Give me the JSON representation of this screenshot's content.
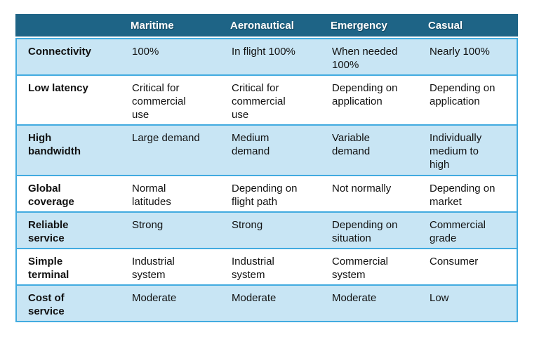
{
  "colors": {
    "header-bg": "#1E6486",
    "header-text": "#FFFFFF",
    "row-bg": "#FFFFFF",
    "row-alt-bg": "#C8E5F4",
    "border": "#42ABE0",
    "body-text": "#111111"
  },
  "table": {
    "columns": [
      "",
      "Maritime",
      "Aeronautical",
      "Emergency",
      "Casual"
    ],
    "rows": [
      {
        "label": "Connectivity",
        "cells": [
          "100%",
          "In flight 100%",
          "When needed\n100%",
          "Nearly 100%"
        ]
      },
      {
        "label": "Low latency",
        "cells": [
          "Critical for\ncommercial\nuse",
          "Critical for\ncommercial\nuse",
          "Depending on\napplication",
          "Depending on\napplication"
        ]
      },
      {
        "label": "High\nbandwidth",
        "cells": [
          "Large demand",
          "Medium\ndemand",
          "Variable\ndemand",
          "Individually\nmedium to\nhigh"
        ]
      },
      {
        "label": "Global\ncoverage",
        "cells": [
          "Normal\nlatitudes",
          "Depending on\nflight path",
          "Not normally",
          "Depending on\nmarket"
        ]
      },
      {
        "label": "Reliable\nservice",
        "cells": [
          "Strong",
          "Strong",
          "Depending on\nsituation",
          "Commercial\ngrade"
        ]
      },
      {
        "label": "Simple\nterminal",
        "cells": [
          "Industrial\nsystem",
          "Industrial\nsystem",
          "Commercial\nsystem",
          "Consumer"
        ]
      },
      {
        "label": "Cost of\nservice",
        "cells": [
          "Moderate",
          "Moderate",
          "Moderate",
          "Low"
        ]
      }
    ]
  }
}
